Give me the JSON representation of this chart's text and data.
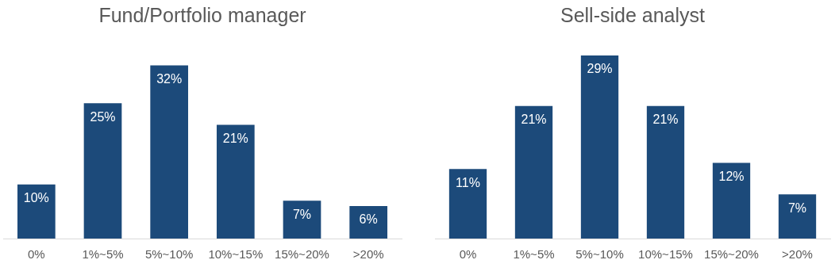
{
  "chart_data": [
    {
      "type": "bar",
      "title": "Fund/Portfolio manager",
      "categories": [
        "0%",
        "1%~5%",
        "5%~10%",
        "10%~15%",
        "15%~20%",
        ">20%"
      ],
      "values": [
        10,
        25,
        32,
        21,
        7,
        6
      ],
      "value_labels": [
        "10%",
        "25%",
        "32%",
        "21%",
        "7%",
        "6%"
      ],
      "color": "#1c4a7a",
      "grid": false,
      "legend": false,
      "tick_labels": "x"
    },
    {
      "type": "bar",
      "title": "Sell-side analyst",
      "categories": [
        "0%",
        "1%~5%",
        "5%~10%",
        "10%~15%",
        "15%~20%",
        ">20%"
      ],
      "values": [
        11,
        21,
        29,
        21,
        12,
        7
      ],
      "value_labels": [
        "11%",
        "21%",
        "29%",
        "21%",
        "12%",
        "7%"
      ],
      "color": "#1c4a7a",
      "grid": false,
      "legend": false,
      "tick_labels": "x"
    }
  ]
}
